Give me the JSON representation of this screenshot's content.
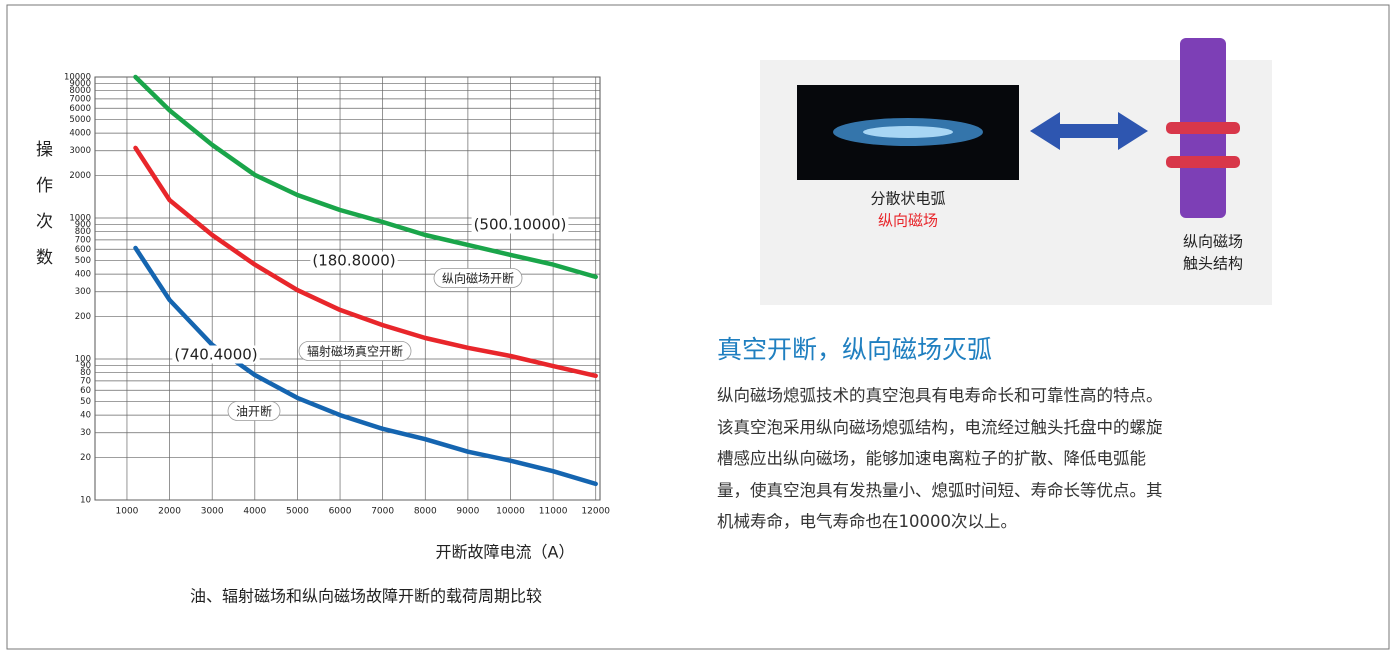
{
  "chart_data": {
    "type": "line",
    "y_label": "操作次数",
    "x_label": "开断故障电流（A）",
    "caption": "油、辐射磁场和纵向磁场故障开断的载荷周期比较",
    "x": [
      1200,
      2000,
      3000,
      4000,
      5000,
      6000,
      7000,
      8000,
      9000,
      10000,
      11000,
      12000
    ],
    "series": [
      {
        "name": "纵向磁场开断",
        "color": "#1aa54a",
        "values": [
          10000,
          5800,
          3300,
          2020,
          1455,
          1140,
          937,
          757,
          644,
          547,
          467,
          382
        ]
      },
      {
        "name": "辐射磁场真空开断",
        "color": "#e8262b",
        "values": [
          3140,
          1340,
          757,
          467,
          308,
          223,
          174,
          141,
          120,
          105,
          89,
          76
        ]
      },
      {
        "name": "油开断",
        "color": "#1565b0",
        "values": [
          613,
          262,
          126,
          77,
          53,
          40,
          32,
          27,
          22,
          19,
          16,
          13
        ]
      }
    ],
    "annotations": [
      "(500.10000)",
      "(180.8000)",
      "(740.4000)"
    ],
    "xlim": [
      250,
      12100
    ],
    "xticks": [
      1000,
      2000,
      3000,
      4000,
      5000,
      6000,
      7000,
      8000,
      9000,
      10000,
      11000,
      12000
    ],
    "ylim": [
      10,
      10000
    ],
    "yticks": [
      10,
      20,
      30,
      40,
      50,
      60,
      70,
      80,
      90,
      100,
      200,
      300,
      400,
      500,
      600,
      700,
      800,
      900,
      1000,
      2000,
      3000,
      4000,
      5000,
      6000,
      7000,
      8000,
      9000,
      10000
    ],
    "log_y": true,
    "grid": true
  },
  "figure": {
    "left_caption": "分散状电弧",
    "left_caption_red": "纵向磁场",
    "right_caption": [
      "纵向磁场",
      "触头结构"
    ]
  },
  "article": {
    "title": "真空开断，纵向磁场灭弧",
    "lines": [
      "纵向磁场熄弧技术的真空泡具有电寿命长和可靠性高的特点。",
      "该真空泡采用纵向磁场熄弧结构，电流经过触头托盘中的螺旋",
      "槽感应出纵向磁场，能够加速电离粒子的扩散、降低电弧能",
      "量，使真空泡具有发热量小、熄弧时间短、寿命长等优点。其",
      "机械寿命，电气寿命也在10000次以上。"
    ]
  }
}
